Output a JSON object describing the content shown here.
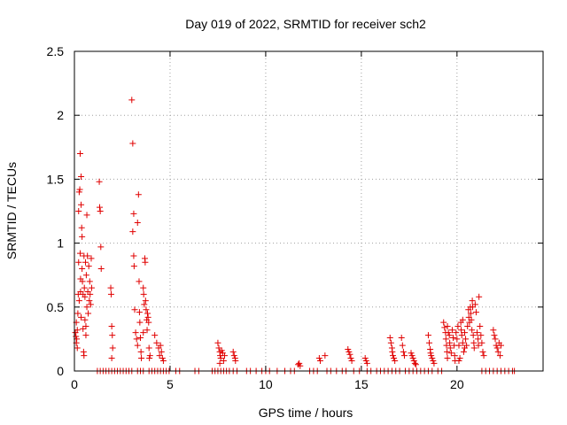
{
  "chart_data": {
    "type": "scatter",
    "title": "Day 019 of 2022, SRMTID for receiver sch2",
    "xlabel": "GPS time / hours",
    "ylabel": "SRMTID / TECUs",
    "xlim": [
      0,
      24.5
    ],
    "ylim": [
      0,
      2.5
    ],
    "xticks": [
      0,
      5,
      10,
      15,
      20
    ],
    "yticks": [
      0,
      0.5,
      1,
      1.5,
      2,
      2.5
    ],
    "grid": true,
    "marker": "plus",
    "color": "#e00000",
    "series": [
      {
        "name": "SRMTID",
        "points": [
          [
            0.05,
            0.3
          ],
          [
            0.08,
            0.27
          ],
          [
            0.1,
            0.38
          ],
          [
            0.12,
            0.25
          ],
          [
            0.15,
            0.32
          ],
          [
            0.18,
            0.45
          ],
          [
            0.2,
            0.6
          ],
          [
            0.22,
            0.85
          ],
          [
            0.22,
            1.25
          ],
          [
            0.25,
            1.4
          ],
          [
            0.25,
            0.55
          ],
          [
            0.28,
            1.42
          ],
          [
            0.3,
            1.7
          ],
          [
            0.3,
            0.92
          ],
          [
            0.32,
            0.72
          ],
          [
            0.32,
            0.62
          ],
          [
            0.35,
            1.3
          ],
          [
            0.35,
            1.52
          ],
          [
            0.35,
            0.42
          ],
          [
            0.38,
            1.12
          ],
          [
            0.4,
            1.05
          ],
          [
            0.4,
            0.8
          ],
          [
            0.42,
            0.7
          ],
          [
            0.45,
            0.6
          ],
          [
            0.45,
            0.33
          ],
          [
            0.48,
            0.15
          ],
          [
            0.5,
            0.9
          ],
          [
            0.5,
            0.12
          ],
          [
            0.52,
            0.65
          ],
          [
            0.55,
            0.58
          ],
          [
            0.55,
            0.4
          ],
          [
            0.58,
            0.85
          ],
          [
            0.6,
            0.35
          ],
          [
            0.62,
            0.75
          ],
          [
            0.65,
            1.22
          ],
          [
            0.65,
            0.5
          ],
          [
            0.68,
            0.9
          ],
          [
            0.7,
            0.62
          ],
          [
            0.72,
            0.45
          ],
          [
            0.75,
            0.82
          ],
          [
            0.78,
            0.55
          ],
          [
            0.8,
            0.7
          ],
          [
            0.82,
            0.6
          ],
          [
            0.85,
            0.52
          ],
          [
            0.88,
            0.88
          ],
          [
            0.9,
            0.65
          ],
          [
            0.1,
            0.22
          ],
          [
            0.15,
            0.18
          ],
          [
            0.6,
            0.28
          ],
          [
            1.3,
            1.48
          ],
          [
            1.32,
            1.28
          ],
          [
            1.35,
            1.25
          ],
          [
            1.38,
            0.97
          ],
          [
            1.4,
            0.8
          ],
          [
            1.9,
            0.65
          ],
          [
            1.92,
            0.6
          ],
          [
            1.95,
            0.35
          ],
          [
            1.98,
            0.28
          ],
          [
            2.0,
            0.18
          ],
          [
            1.95,
            0.1
          ],
          [
            3.0,
            2.12
          ],
          [
            3.05,
            1.78
          ],
          [
            3.1,
            1.23
          ],
          [
            3.05,
            1.09
          ],
          [
            3.1,
            0.9
          ],
          [
            3.12,
            0.82
          ],
          [
            3.15,
            0.48
          ],
          [
            3.2,
            0.3
          ],
          [
            3.25,
            0.25
          ],
          [
            3.3,
            1.16
          ],
          [
            3.35,
            1.38
          ],
          [
            3.38,
            0.7
          ],
          [
            3.4,
            0.46
          ],
          [
            3.42,
            0.38
          ],
          [
            3.45,
            0.26
          ],
          [
            3.48,
            0.15
          ],
          [
            3.5,
            0.1
          ],
          [
            3.6,
            0.65
          ],
          [
            3.62,
            0.6
          ],
          [
            3.65,
            0.52
          ],
          [
            3.68,
            0.88
          ],
          [
            3.7,
            0.85
          ],
          [
            3.72,
            0.55
          ],
          [
            3.75,
            0.48
          ],
          [
            3.78,
            0.4
          ],
          [
            3.8,
            0.32
          ],
          [
            3.82,
            0.45
          ],
          [
            3.85,
            0.42
          ],
          [
            3.88,
            0.38
          ],
          [
            3.9,
            0.18
          ],
          [
            3.92,
            0.1
          ],
          [
            3.95,
            0.12
          ],
          [
            3.3,
            0.2
          ],
          [
            3.6,
            0.3
          ],
          [
            4.2,
            0.28
          ],
          [
            4.3,
            0.22
          ],
          [
            4.4,
            0.18
          ],
          [
            4.45,
            0.12
          ],
          [
            4.5,
            0.2
          ],
          [
            4.55,
            0.15
          ],
          [
            4.6,
            0.1
          ],
          [
            4.65,
            0.08
          ],
          [
            7.5,
            0.22
          ],
          [
            7.55,
            0.18
          ],
          [
            7.6,
            0.15
          ],
          [
            7.62,
            0.12
          ],
          [
            7.65,
            0.1
          ],
          [
            7.7,
            0.16
          ],
          [
            7.75,
            0.14
          ],
          [
            7.8,
            0.08
          ],
          [
            7.85,
            0.12
          ],
          [
            7.6,
            0.06
          ],
          [
            8.3,
            0.15
          ],
          [
            8.35,
            0.12
          ],
          [
            8.4,
            0.1
          ],
          [
            8.42,
            0.08
          ],
          [
            11.7,
            0.05
          ],
          [
            11.75,
            0.06
          ],
          [
            11.8,
            0.04
          ],
          [
            12.8,
            0.1
          ],
          [
            12.85,
            0.08
          ],
          [
            13.1,
            0.12
          ],
          [
            14.3,
            0.17
          ],
          [
            14.35,
            0.15
          ],
          [
            14.4,
            0.13
          ],
          [
            14.45,
            0.1
          ],
          [
            14.5,
            0.08
          ],
          [
            15.2,
            0.1
          ],
          [
            15.25,
            0.08
          ],
          [
            15.3,
            0.06
          ],
          [
            16.5,
            0.26
          ],
          [
            16.55,
            0.22
          ],
          [
            16.6,
            0.18
          ],
          [
            16.62,
            0.15
          ],
          [
            16.65,
            0.12
          ],
          [
            16.7,
            0.1
          ],
          [
            16.75,
            0.08
          ],
          [
            17.1,
            0.26
          ],
          [
            17.15,
            0.2
          ],
          [
            17.2,
            0.15
          ],
          [
            17.25,
            0.12
          ],
          [
            17.6,
            0.14
          ],
          [
            17.65,
            0.12
          ],
          [
            17.7,
            0.1
          ],
          [
            17.75,
            0.08
          ],
          [
            17.8,
            0.06
          ],
          [
            17.85,
            0.05
          ],
          [
            18.5,
            0.28
          ],
          [
            18.55,
            0.22
          ],
          [
            18.6,
            0.17
          ],
          [
            18.62,
            0.14
          ],
          [
            18.65,
            0.12
          ],
          [
            18.7,
            0.1
          ],
          [
            18.75,
            0.08
          ],
          [
            18.8,
            0.06
          ],
          [
            19.3,
            0.38
          ],
          [
            19.35,
            0.34
          ],
          [
            19.4,
            0.3
          ],
          [
            19.42,
            0.25
          ],
          [
            19.45,
            0.2
          ],
          [
            19.48,
            0.15
          ],
          [
            19.5,
            0.35
          ],
          [
            19.55,
            0.3
          ],
          [
            19.6,
            0.28
          ],
          [
            19.62,
            0.22
          ],
          [
            19.65,
            0.18
          ],
          [
            19.7,
            0.14
          ],
          [
            19.75,
            0.32
          ],
          [
            19.8,
            0.26
          ],
          [
            19.85,
            0.2
          ],
          [
            19.88,
            0.12
          ],
          [
            19.9,
            0.08
          ],
          [
            19.95,
            0.3
          ],
          [
            20.0,
            0.25
          ],
          [
            20.05,
            0.35
          ],
          [
            20.1,
            0.2
          ],
          [
            20.15,
            0.1
          ],
          [
            20.2,
            0.38
          ],
          [
            20.22,
            0.32
          ],
          [
            20.25,
            0.28
          ],
          [
            20.3,
            0.22
          ],
          [
            20.35,
            0.15
          ],
          [
            20.4,
            0.3
          ],
          [
            20.45,
            0.25
          ],
          [
            20.5,
            0.2
          ],
          [
            20.55,
            0.35
          ],
          [
            20.6,
            0.48
          ],
          [
            20.62,
            0.42
          ],
          [
            20.65,
            0.38
          ],
          [
            20.7,
            0.5
          ],
          [
            20.72,
            0.45
          ],
          [
            20.75,
            0.4
          ],
          [
            20.78,
            0.32
          ],
          [
            20.8,
            0.55
          ],
          [
            20.82,
            0.5
          ],
          [
            20.85,
            0.28
          ],
          [
            20.88,
            0.22
          ],
          [
            20.9,
            0.18
          ],
          [
            20.95,
            0.52
          ],
          [
            21.0,
            0.46
          ],
          [
            21.05,
            0.3
          ],
          [
            21.1,
            0.25
          ],
          [
            21.12,
            0.2
          ],
          [
            21.15,
            0.58
          ],
          [
            21.2,
            0.35
          ],
          [
            21.25,
            0.28
          ],
          [
            21.3,
            0.22
          ],
          [
            21.35,
            0.15
          ],
          [
            21.4,
            0.12
          ],
          [
            20.3,
            0.4
          ],
          [
            20.4,
            0.18
          ],
          [
            20.1,
            0.08
          ],
          [
            19.5,
            0.1
          ],
          [
            21.9,
            0.32
          ],
          [
            21.95,
            0.28
          ],
          [
            22.0,
            0.25
          ],
          [
            22.05,
            0.2
          ],
          [
            22.1,
            0.18
          ],
          [
            22.15,
            0.15
          ],
          [
            22.2,
            0.22
          ],
          [
            22.25,
            0.12
          ],
          [
            22.3,
            0.2
          ]
        ],
        "zero_x": [
          1.2,
          1.35,
          1.5,
          1.65,
          1.8,
          1.95,
          2.1,
          2.25,
          2.4,
          2.55,
          2.7,
          2.85,
          3.0,
          3.3,
          3.45,
          3.6,
          3.9,
          4.05,
          4.2,
          4.35,
          4.5,
          4.65,
          4.8,
          4.95,
          5.3,
          5.5,
          6.3,
          6.5,
          7.2,
          7.35,
          7.5,
          7.65,
          7.8,
          7.95,
          8.1,
          8.3,
          8.5,
          9.0,
          9.2,
          9.5,
          9.8,
          10.0,
          10.2,
          10.6,
          11.0,
          11.3,
          11.5,
          12.3,
          12.5,
          12.7,
          13.2,
          13.4,
          13.7,
          14.0,
          14.2,
          14.6,
          14.9,
          15.3,
          15.5,
          15.8,
          16.0,
          16.2,
          16.4,
          16.6,
          16.8,
          17.0,
          17.3,
          17.5,
          17.7,
          17.9,
          18.1,
          18.3,
          18.5,
          18.7,
          19.0,
          19.2,
          21.3,
          21.5,
          21.7,
          21.9,
          22.1,
          22.3,
          22.5,
          22.7,
          22.9,
          23.0
        ]
      }
    ]
  }
}
